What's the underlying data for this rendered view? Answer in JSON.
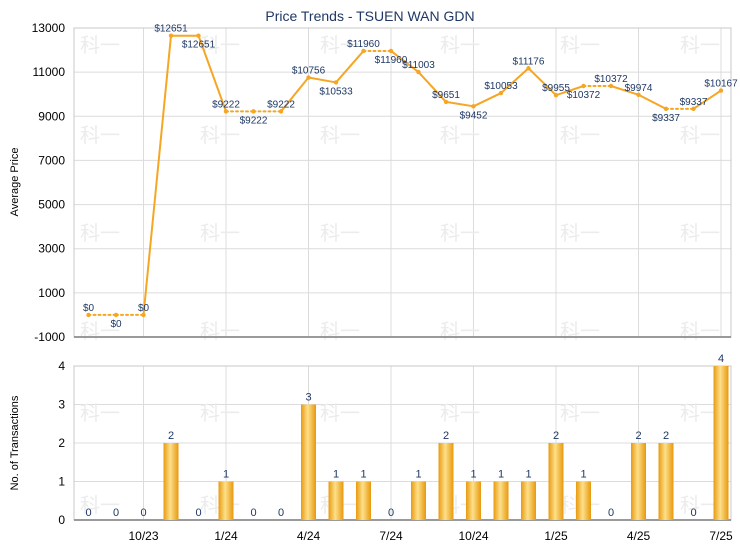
{
  "chart_data": [
    {
      "type": "line",
      "title": "Price Trends - TSUEN WAN GDN",
      "ylabel": "Average Price",
      "ylim": [
        -1000,
        13000
      ],
      "yticks": [
        -1000,
        1000,
        3000,
        5000,
        7000,
        9000,
        11000,
        13000
      ],
      "grid": true,
      "series": [
        {
          "values": [
            0,
            0,
            0,
            12651,
            12651,
            9222,
            9222,
            9222,
            10756,
            10533,
            11960,
            11960,
            11003,
            9651,
            9452,
            10053,
            11176,
            9955,
            10372,
            10372,
            9974,
            9337,
            9337,
            10167
          ],
          "labels": [
            "$0",
            "$0",
            "$0",
            "$12651",
            "$12651",
            "$9222",
            "$9222",
            "$9222",
            "$10756",
            "$10533",
            "$11960",
            "$11960",
            "$11003",
            "$9651",
            "$9452",
            "$10053",
            "$11176",
            "$9955",
            "$10372",
            "$10372",
            "$9974",
            "$9337",
            "$9337",
            "$10167"
          ],
          "label_below": [
            false,
            true,
            false,
            false,
            true,
            false,
            true,
            false,
            false,
            true,
            false,
            true,
            false,
            false,
            true,
            false,
            false,
            false,
            true,
            false,
            false,
            true,
            false,
            false
          ],
          "dotted_after": [
            true,
            true,
            false,
            false,
            false,
            true,
            true,
            false,
            false,
            false,
            true,
            false,
            false,
            false,
            false,
            false,
            false,
            false,
            true,
            false,
            false,
            true,
            false
          ]
        }
      ],
      "color": "#f5a623"
    },
    {
      "type": "bar",
      "ylabel": "No. of Transactions",
      "ylim": [
        0,
        4
      ],
      "yticks": [
        0,
        1,
        2,
        3,
        4
      ],
      "grid": true,
      "x_tick_labels": [
        "10/23",
        "1/24",
        "4/24",
        "7/24",
        "10/24",
        "1/25",
        "4/25",
        "7/25"
      ],
      "x_tick_positions": [
        2,
        5,
        8,
        11,
        14,
        17,
        20,
        23
      ],
      "values": [
        0,
        0,
        0,
        2,
        0,
        1,
        0,
        0,
        3,
        1,
        1,
        0,
        1,
        2,
        1,
        1,
        1,
        2,
        1,
        0,
        2,
        2,
        0,
        4
      ],
      "color": "#f0a818"
    }
  ],
  "watermark": "科一"
}
